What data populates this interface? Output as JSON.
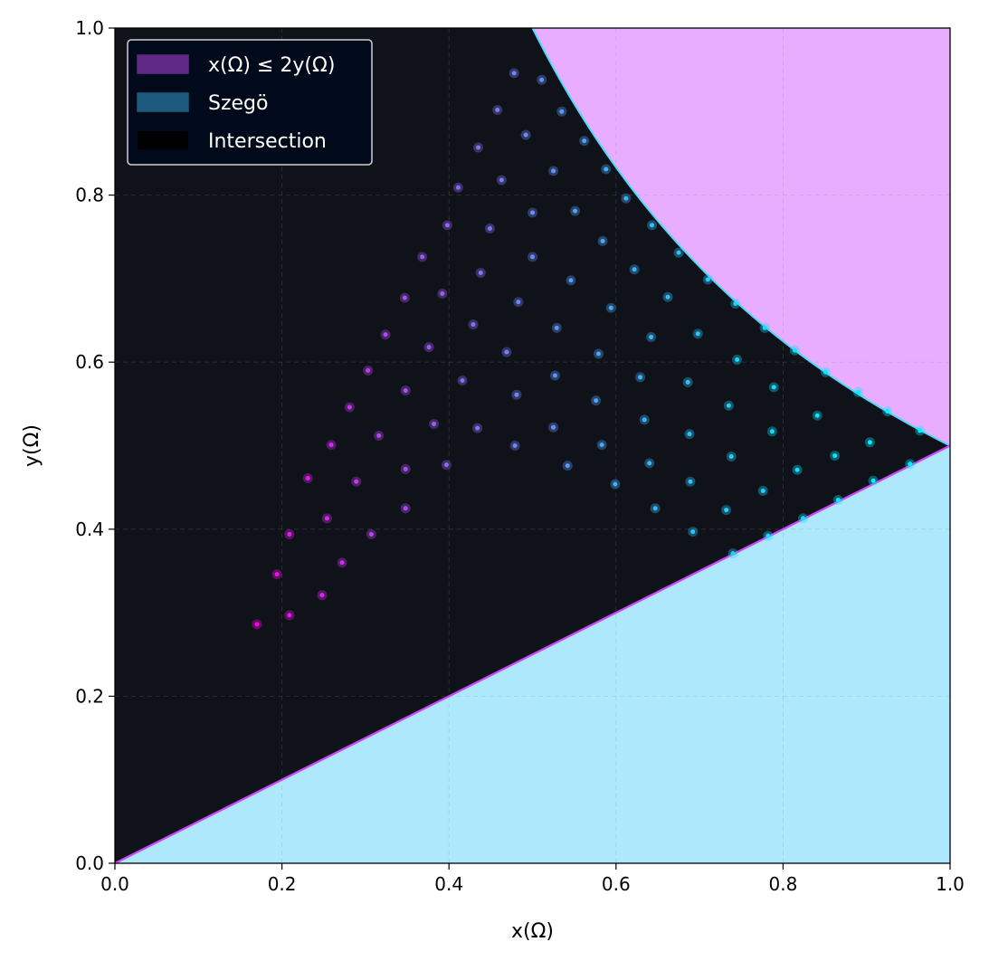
{
  "chart_data": {
    "type": "scatter",
    "title": "",
    "xlabel": "x(Ω)",
    "ylabel": "y(Ω)",
    "xlim": [
      0.0,
      1.0
    ],
    "ylim": [
      0.0,
      1.0
    ],
    "x_ticks": [
      "0.0",
      "0.2",
      "0.4",
      "0.6",
      "0.8",
      "1.0"
    ],
    "y_ticks": [
      "0.0",
      "0.2",
      "0.4",
      "0.6",
      "0.8",
      "1.0"
    ],
    "grid": true,
    "legend_position": "top-left",
    "background_color": "#10121a",
    "regions": [
      {
        "name": "x(Ω) ≤ 2y(Ω)",
        "swatch_color": "#5e2a85",
        "fill_color": "#e9adff",
        "boundary": "y = 0.5/x",
        "boundary_color": "#4fd8ff"
      },
      {
        "name": "Szegö",
        "swatch_color": "#1d5a7d",
        "fill_color": "#ade8fc",
        "boundary": "y = x/2",
        "boundary_color": "#cc44ff"
      },
      {
        "name": "Intersection",
        "swatch_color": "#000000"
      }
    ],
    "points": [
      [
        0.17,
        0.286
      ],
      [
        0.194,
        0.346
      ],
      [
        0.209,
        0.297
      ],
      [
        0.209,
        0.394
      ],
      [
        0.231,
        0.461
      ],
      [
        0.248,
        0.321
      ],
      [
        0.254,
        0.413
      ],
      [
        0.259,
        0.501
      ],
      [
        0.272,
        0.36
      ],
      [
        0.281,
        0.546
      ],
      [
        0.289,
        0.457
      ],
      [
        0.303,
        0.59
      ],
      [
        0.307,
        0.394
      ],
      [
        0.316,
        0.512
      ],
      [
        0.324,
        0.633
      ],
      [
        0.348,
        0.425
      ],
      [
        0.348,
        0.472
      ],
      [
        0.348,
        0.566
      ],
      [
        0.347,
        0.677
      ],
      [
        0.368,
        0.726
      ],
      [
        0.376,
        0.618
      ],
      [
        0.382,
        0.526
      ],
      [
        0.392,
        0.682
      ],
      [
        0.397,
        0.477
      ],
      [
        0.398,
        0.764
      ],
      [
        0.411,
        0.809
      ],
      [
        0.416,
        0.578
      ],
      [
        0.429,
        0.645
      ],
      [
        0.434,
        0.521
      ],
      [
        0.435,
        0.857
      ],
      [
        0.438,
        0.707
      ],
      [
        0.449,
        0.76
      ],
      [
        0.458,
        0.902
      ],
      [
        0.463,
        0.818
      ],
      [
        0.469,
        0.612
      ],
      [
        0.478,
        0.946
      ],
      [
        0.479,
        0.5
      ],
      [
        0.481,
        0.561
      ],
      [
        0.483,
        0.672
      ],
      [
        0.492,
        0.872
      ],
      [
        0.5,
        0.726
      ],
      [
        0.5,
        0.779
      ],
      [
        0.511,
        0.938
      ],
      [
        0.525,
        0.522
      ],
      [
        0.525,
        0.829
      ],
      [
        0.527,
        0.584
      ],
      [
        0.529,
        0.641
      ],
      [
        0.535,
        0.9
      ],
      [
        0.542,
        0.476
      ],
      [
        0.546,
        0.698
      ],
      [
        0.551,
        0.781
      ],
      [
        0.562,
        0.865
      ],
      [
        0.576,
        0.554
      ],
      [
        0.579,
        0.61
      ],
      [
        0.583,
        0.501
      ],
      [
        0.584,
        0.745
      ],
      [
        0.588,
        0.831
      ],
      [
        0.594,
        0.665
      ],
      [
        0.599,
        0.454
      ],
      [
        0.612,
        0.796
      ],
      [
        0.622,
        0.711
      ],
      [
        0.629,
        0.582
      ],
      [
        0.634,
        0.531
      ],
      [
        0.64,
        0.479
      ],
      [
        0.642,
        0.63
      ],
      [
        0.643,
        0.764
      ],
      [
        0.647,
        0.425
      ],
      [
        0.662,
        0.678
      ],
      [
        0.675,
        0.731
      ],
      [
        0.686,
        0.576
      ],
      [
        0.688,
        0.514
      ],
      [
        0.689,
        0.457
      ],
      [
        0.692,
        0.397
      ],
      [
        0.698,
        0.634
      ],
      [
        0.71,
        0.699
      ],
      [
        0.732,
        0.423
      ],
      [
        0.735,
        0.548
      ],
      [
        0.738,
        0.487
      ],
      [
        0.74,
        0.371
      ],
      [
        0.743,
        0.67
      ],
      [
        0.745,
        0.603
      ],
      [
        0.776,
        0.446
      ],
      [
        0.778,
        0.641
      ],
      [
        0.782,
        0.392
      ],
      [
        0.787,
        0.517
      ],
      [
        0.789,
        0.57
      ],
      [
        0.814,
        0.614
      ],
      [
        0.817,
        0.471
      ],
      [
        0.824,
        0.413
      ],
      [
        0.841,
        0.536
      ],
      [
        0.851,
        0.588
      ],
      [
        0.862,
        0.488
      ],
      [
        0.866,
        0.435
      ],
      [
        0.89,
        0.564
      ],
      [
        0.904,
        0.504
      ],
      [
        0.908,
        0.458
      ],
      [
        0.925,
        0.541
      ],
      [
        0.952,
        0.478
      ],
      [
        0.964,
        0.518
      ]
    ]
  }
}
